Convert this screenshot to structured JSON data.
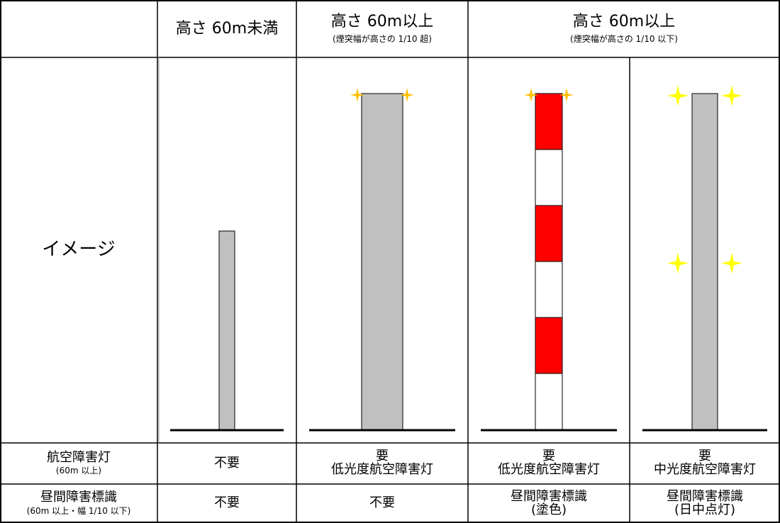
{
  "header": {
    "col1": {
      "title": "高さ 60m未満"
    },
    "col2": {
      "title": "高さ 60m以上",
      "subtitle": "(煙突幅が高さの 1/10 超)"
    },
    "col3": {
      "title": "高さ 60m以上",
      "subtitle": "(煙突幅が高さの 1/10 以下)"
    }
  },
  "rows": {
    "image": {
      "label": "イメージ"
    },
    "aviation_light": {
      "label": "航空障害灯",
      "sublabel": "(60m 以上)",
      "values": [
        {
          "line1": "不要",
          "line2": ""
        },
        {
          "line1": "要",
          "line2": "低光度航空障害灯"
        },
        {
          "line1": "要",
          "line2": "低光度航空障害灯"
        },
        {
          "line1": "要",
          "line2": "中光度航空障害灯"
        }
      ]
    },
    "daytime_marker": {
      "label": "昼間障害標識",
      "sublabel": "(60m 以上・幅 1/10 以下)",
      "values": [
        {
          "line1": "不要",
          "line2": ""
        },
        {
          "line1": "不要",
          "line2": ""
        },
        {
          "line1": "昼間障害標識",
          "line2": "(塗色)"
        },
        {
          "line1": "昼間障害標識",
          "line2": "(日中点灯)"
        }
      ]
    }
  },
  "colors": {
    "chimney_gray": "#c0c0c0",
    "stripe_red": "#ff0000",
    "stripe_white": "#ffffff",
    "light_low": "#ffc000",
    "light_medium": "#ffff00",
    "grid": "#000000",
    "divider": "#999999"
  },
  "chimneys": [
    {
      "type": "plain",
      "relative_height": 0.59,
      "relative_width": 0.24,
      "light": "none"
    },
    {
      "type": "plain",
      "relative_height": 1.0,
      "relative_width": 0.35,
      "light": "low",
      "light_levels": 1
    },
    {
      "type": "striped",
      "relative_height": 1.0,
      "relative_width": 0.24,
      "light": "low",
      "light_levels": 1,
      "bands": 6
    },
    {
      "type": "plain",
      "relative_height": 1.0,
      "relative_width": 0.22,
      "light": "medium",
      "light_levels": 2
    }
  ]
}
